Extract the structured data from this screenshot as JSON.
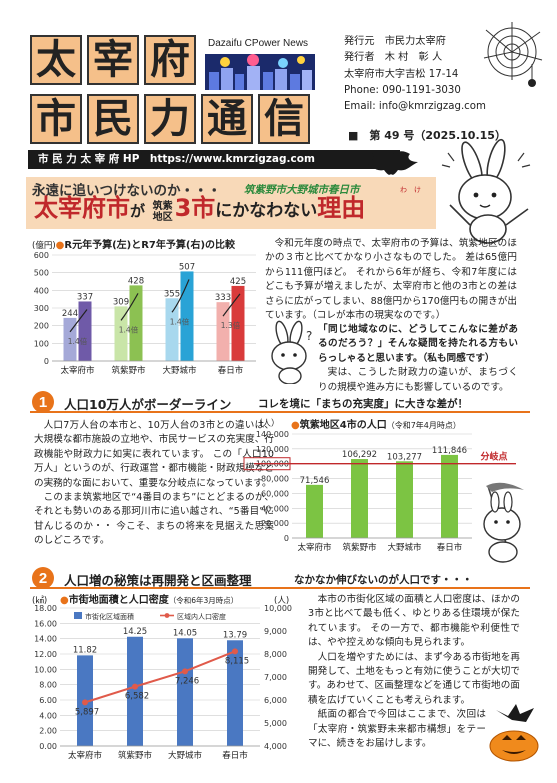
{
  "masthead": {
    "title_chars": [
      "太",
      "宰",
      "府",
      "市",
      "民",
      "力",
      "通",
      "信"
    ],
    "brand": "Dazaifu CPower News",
    "info": [
      "発行元　市民力太宰府",
      "発行者　木 村　彰 人",
      "太宰府市大字吉松 17-14",
      "Phone: 090-1191-3030",
      "Email: info@kmrzigzag.com"
    ],
    "issue": "■　第 49 号（2025.10.15）"
  },
  "hpbar": {
    "text": "市 民 力 太 宰 府 HP　https://www.kmrzigzag.com"
  },
  "headline": {
    "kicker": "永遠に追いつけないのか・・・",
    "kicker2": "筑紫野市大野城市春日市",
    "main1": "太宰府市",
    "ga": "が",
    "chikushi": "筑紫",
    "chiku": "地区",
    "main2": "3市",
    "main3": "にかなわない",
    "main4": "理由",
    "ruby": "わ　け"
  },
  "intro": {
    "paragraphs": [
      "令和元年度の時点で、太宰府市の予算は、筑紫地区のほかの３市と比べてかなり小さなものでした。 差は65億円から111億円ほど。 それから6年が経ち、令和7年度にはどこも予算が増えましたが、太宰府市と他の3市との差はさらに広がってしまい、88億円から170億円もの開きが出ています。（コレが本市の現実なのです。）",
      "「同じ地域なのに、どうしてこんなに差があるのだろう？」そんな疑問を持たれる方もいらっしゃると思います。（私も同感です）",
      "実は、こうした財政力の違いが、まちづくりの規模や進み方にも影響しているのです。"
    ]
  },
  "section1": {
    "num": "1",
    "title": "人口10万人がボーダーライン",
    "subtitle": "コレを境に「まちの充実度」に大きな差が！",
    "paragraphs": [
      "人口7万人台の本市と、10万人台の3市との違いは、大規模な都市施設の立地や、市民サービスの充実度、行政機能や財政力に如実に表れています。 この「人口10万人」というのが、行政運営・都市機能・財政規模などの実務的な面において、重要な分岐点になっています。",
      "このまま筑紫地区で“4番目のまち”にとどまるのか、それとも勢いのある那珂川市に追い越され、“5番目”に甘んじるのか・・ 今こそ、まちの将来を見据えた思案のしどころです。"
    ]
  },
  "section2": {
    "num": "2",
    "title": "人口増の秘策は再開発と区画整理",
    "subtitle": "なかなか伸びないのが人口です・・・",
    "paragraphs": [
      "本市の市街化区域の面積と人口密度は、ほかの3市と比べて最も低く、ゆとりある住環境が保たれています。 その一方で、都市機能や利便性では、やや控えめな傾向も見られます。",
      "人口を増やすためには、まず今ある市街地を再開発して、土地をもっと有効に使うことが大切です。あわせて、区画整理などを通じて市街地の面積を広げていくことも考えられます。",
      "紙面の都合で今回はここまで、次回は「太宰府・筑紫野未来都市構想」をテーマに、続きをお届けします。"
    ]
  },
  "chart_data": [
    {
      "type": "bar",
      "title": "R元年予算(左)とR7年予算(右)の比較",
      "ylabel": "(億円)",
      "ylim": [
        0,
        600
      ],
      "yticks": [
        0,
        100,
        200,
        300,
        400,
        500,
        600
      ],
      "categories": [
        "太宰府市",
        "筑紫野市",
        "大野城市",
        "春日市"
      ],
      "series": [
        {
          "values": [
            244,
            309,
            355,
            333
          ]
        },
        {
          "values": [
            337,
            428,
            507,
            425
          ]
        }
      ],
      "annotations": [
        "1.4倍",
        "1.4倍",
        "1.4倍",
        "1.3倍"
      ]
    },
    {
      "type": "bar",
      "title": "筑紫地区4市の人口",
      "subtitle": "（令和7年4月時点）",
      "ylabel": "（人）",
      "ylim": [
        0,
        140000
      ],
      "yticks": [
        "0",
        "20,000",
        "40,000",
        "60,000",
        "80,000",
        "100,000",
        "120,000",
        "140,000"
      ],
      "categories": [
        "太宰府市",
        "筑紫野市",
        "大野城市",
        "春日市"
      ],
      "values": [
        71546,
        106292,
        103277,
        111846
      ],
      "labels": [
        "71,546",
        "106,292",
        "103,277",
        "111,846"
      ],
      "reference_line": 100000,
      "reference_label": "分岐点"
    },
    {
      "type": "bar",
      "title": "市街地面積と人口密度",
      "subtitle": "（令和6年3月時点）",
      "ylabel_left": "(㎢)",
      "ylabel_right": "(人)",
      "ylim_left": [
        0,
        18
      ],
      "ylim_right": [
        4000,
        10000
      ],
      "yticks_left": [
        "0.00",
        "2.00",
        "4.00",
        "6.00",
        "8.00",
        "10.00",
        "12.00",
        "14.00",
        "16.00",
        "18.00"
      ],
      "yticks_right": [
        "4,000",
        "5,000",
        "6,000",
        "7,000",
        "8,000",
        "9,000",
        "10,000"
      ],
      "categories": [
        "太宰府市",
        "筑紫野市",
        "大野城市",
        "春日市"
      ],
      "series": [
        {
          "name": "市街化区域面積",
          "type": "bar",
          "values": [
            11.82,
            14.25,
            14.05,
            13.79
          ],
          "labels": [
            "11.82",
            "14.25",
            "14.05",
            "13.79"
          ]
        },
        {
          "name": "区域内人口密度",
          "type": "line",
          "values": [
            5897,
            6582,
            7246,
            8115
          ],
          "labels": [
            "5,897",
            "6,582",
            "7,246",
            "8,115"
          ]
        }
      ]
    }
  ]
}
